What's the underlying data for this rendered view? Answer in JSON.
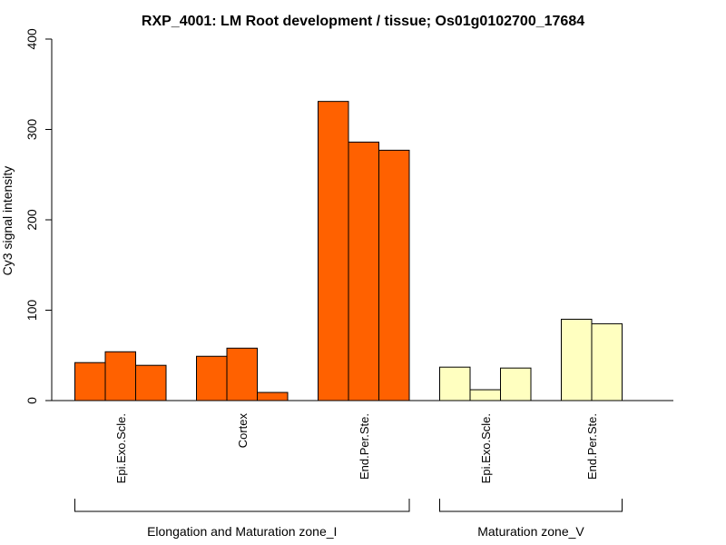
{
  "chart_data": {
    "type": "bar",
    "title": "RXP_4001: LM Root development / tissue; Os01g0102700_17684",
    "xlabel": "",
    "ylabel": "Cy3 signal intensity",
    "ylim": [
      0,
      400
    ],
    "yticks": [
      0,
      100,
      200,
      300,
      400
    ],
    "categories": [
      "Epi.Exo.Scle.",
      "Cortex",
      "End.Per.Ste.",
      "Epi.Exo.Scle.",
      "End.Per.Ste."
    ],
    "groups": [
      {
        "name": "Elongation and Maturation zone_I",
        "categories": [
          0,
          1,
          2
        ],
        "color": "#FF6100"
      },
      {
        "name": "Maturation zone_V",
        "categories": [
          3,
          4
        ],
        "color": "#FFFFC0"
      }
    ],
    "bars": [
      {
        "category": 0,
        "values": [
          42,
          54,
          39
        ]
      },
      {
        "category": 1,
        "values": [
          49,
          58,
          9
        ]
      },
      {
        "category": 2,
        "values": [
          331,
          286,
          277
        ]
      },
      {
        "category": 3,
        "values": [
          37,
          12,
          36
        ]
      },
      {
        "category": 4,
        "values": [
          90,
          85
        ]
      }
    ]
  }
}
